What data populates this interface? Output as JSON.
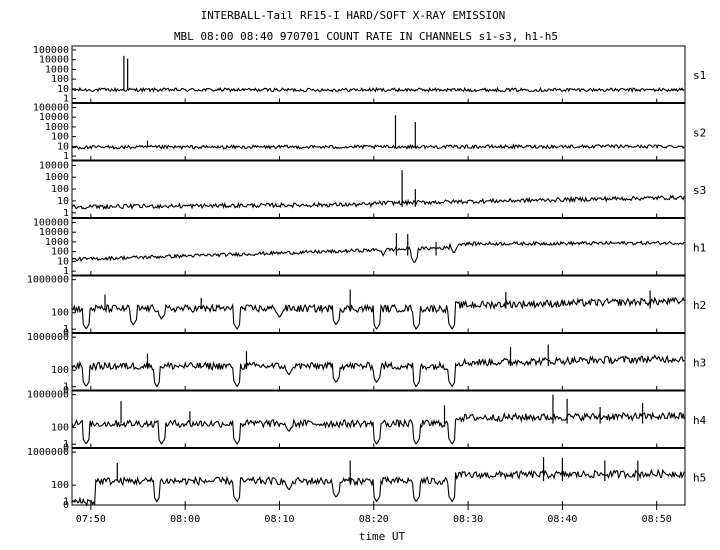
{
  "figure": {
    "title_line1": "INTERBALL-Tail RF15-I HARD/SOFT X-RAY EMISSION",
    "title_line2": "MBL 08:00 08:40 970701  COUNT RATE IN CHANNELS s1-s3, h1-h5"
  },
  "chart_data": {
    "type": "line",
    "title": "INTERBALL-Tail RF15-I HARD/SOFT X-RAY EMISSION",
    "subtitle": "MBL 08:00 08:40 970701  COUNT RATE IN CHANNELS s1-s3, h1-h5",
    "xlabel": "time UT",
    "x_range_minutes": [
      -12,
      53
    ],
    "x_ticks": [
      {
        "minute": -10,
        "label": "07:50"
      },
      {
        "minute": 0,
        "label": "08:00"
      },
      {
        "minute": 10,
        "label": "08:10"
      },
      {
        "minute": 20,
        "label": "08:20"
      },
      {
        "minute": 30,
        "label": "08:30"
      },
      {
        "minute": 40,
        "label": "08:40"
      },
      {
        "minute": 50,
        "label": "08:50"
      }
    ],
    "y_scale": "log",
    "grid": false,
    "panels": [
      {
        "name": "s1",
        "ymax_exp": 5,
        "ytick_labels": [
          "100000",
          "10000",
          "1000",
          "100",
          "10",
          "1"
        ],
        "baseline_exp": 0.9,
        "segments": [
          {
            "t0": -12,
            "t1": 53,
            "y0": 0.9,
            "y1": 0.9
          }
        ],
        "drops": [],
        "spikes": [
          {
            "t": -6.5,
            "exp": 4.4
          },
          {
            "t": -6.1,
            "exp": 4.1
          }
        ]
      },
      {
        "name": "s2",
        "ymax_exp": 5,
        "ytick_labels": [
          "100000",
          "10000",
          "1000",
          "100",
          "10",
          "1"
        ],
        "baseline_exp": 0.9,
        "segments": [
          {
            "t0": -12,
            "t1": 53,
            "y0": 0.9,
            "y1": 1.0
          }
        ],
        "drops": [],
        "spikes": [
          {
            "t": -4.0,
            "exp": 1.6
          },
          {
            "t": 22.3,
            "exp": 4.2
          },
          {
            "t": 24.4,
            "exp": 3.5
          }
        ]
      },
      {
        "name": "s3",
        "ymax_exp": 4,
        "ytick_labels": [
          "10000",
          "1000",
          "100",
          "10",
          "1"
        ],
        "baseline_exp": 0.5,
        "segments": [
          {
            "t0": -12,
            "t1": 20,
            "y0": 0.5,
            "y1": 0.7
          },
          {
            "t0": 20,
            "t1": 53,
            "y0": 0.8,
            "y1": 1.3
          }
        ],
        "drops": [],
        "spikes": [
          {
            "t": 23.0,
            "exp": 3.6
          },
          {
            "t": 24.4,
            "exp": 2.0
          }
        ]
      },
      {
        "name": "h1",
        "ymax_exp": 5,
        "ytick_labels": [
          "100000",
          "10000",
          "1000",
          "100",
          "10",
          "1"
        ],
        "baseline_exp": 1.6,
        "segments": [
          {
            "t0": -12,
            "t1": 28,
            "y0": 1.2,
            "y1": 2.4
          },
          {
            "t0": 28,
            "t1": 53,
            "y0": 2.8,
            "y1": 2.9
          }
        ],
        "drops": [
          {
            "t": 5,
            "exp": 1.8
          },
          {
            "t": 13,
            "exp": 1.8
          },
          {
            "t": 16,
            "exp": 1.8
          },
          {
            "t": 21,
            "exp": 1.6
          },
          {
            "t": 24.3,
            "exp": 0.8
          },
          {
            "t": 28.5,
            "exp": 1.8
          }
        ],
        "spikes": [
          {
            "t": 22.4,
            "exp": 3.9
          },
          {
            "t": 23.6,
            "exp": 3.8
          },
          {
            "t": 26.6,
            "exp": 3.0
          }
        ]
      },
      {
        "name": "h2",
        "ymax_exp": 6,
        "ytick_labels": [
          "1000000",
          "100",
          "1",
          "0"
        ],
        "baseline_exp": 2.5,
        "segments": [
          {
            "t0": -12,
            "t1": 28.5,
            "y0": 2.5,
            "y1": 2.5
          },
          {
            "t0": 28.5,
            "t1": 53,
            "y0": 2.9,
            "y1": 3.4
          }
        ],
        "drops": [
          {
            "t": -10.5,
            "exp": 0.0
          },
          {
            "t": -5.5,
            "exp": 0.5
          },
          {
            "t": -2.5,
            "exp": 1.2
          },
          {
            "t": 5.5,
            "exp": 0.0
          },
          {
            "t": 10.0,
            "exp": 1.4
          },
          {
            "t": 16.0,
            "exp": 0.5
          },
          {
            "t": 20.3,
            "exp": 0.0
          },
          {
            "t": 24.5,
            "exp": 0.0
          },
          {
            "t": 28.3,
            "exp": 0.0
          }
        ],
        "spikes": [
          {
            "t": -8.5,
            "exp": 4.2
          },
          {
            "t": 1.7,
            "exp": 3.8
          },
          {
            "t": 17.5,
            "exp": 4.8
          },
          {
            "t": 34.0,
            "exp": 4.5
          },
          {
            "t": 49.3,
            "exp": 4.7
          }
        ]
      },
      {
        "name": "h3",
        "ymax_exp": 6,
        "ytick_labels": [
          "1000000",
          "100",
          "1",
          "0"
        ],
        "baseline_exp": 2.5,
        "segments": [
          {
            "t0": -12,
            "t1": 28.5,
            "y0": 2.5,
            "y1": 2.5
          },
          {
            "t0": 28.5,
            "t1": 53,
            "y0": 2.9,
            "y1": 3.4
          }
        ],
        "drops": [
          {
            "t": -10.5,
            "exp": 0.0
          },
          {
            "t": -3.0,
            "exp": 0.0
          },
          {
            "t": 5.5,
            "exp": 0.0
          },
          {
            "t": 11.0,
            "exp": 1.4
          },
          {
            "t": 16.0,
            "exp": 0.5
          },
          {
            "t": 20.3,
            "exp": 0.5
          },
          {
            "t": 24.5,
            "exp": 0.0
          },
          {
            "t": 28.3,
            "exp": 0.0
          }
        ],
        "spikes": [
          {
            "t": -4.0,
            "exp": 4.0
          },
          {
            "t": 6.5,
            "exp": 4.3
          },
          {
            "t": 34.5,
            "exp": 4.8
          },
          {
            "t": 38.5,
            "exp": 5.1
          }
        ]
      },
      {
        "name": "h4",
        "ymax_exp": 6,
        "ytick_labels": [
          "1000000",
          "100",
          "1",
          "0"
        ],
        "baseline_exp": 2.5,
        "segments": [
          {
            "t0": -12,
            "t1": 28.5,
            "y0": 2.5,
            "y1": 2.5
          },
          {
            "t0": 28.5,
            "t1": 53,
            "y0": 3.2,
            "y1": 3.4
          }
        ],
        "drops": [
          {
            "t": -10.5,
            "exp": 0.0
          },
          {
            "t": -2.5,
            "exp": 0.0
          },
          {
            "t": 5.5,
            "exp": 0.0
          },
          {
            "t": 11.0,
            "exp": 1.5
          },
          {
            "t": 20.3,
            "exp": 0.0
          },
          {
            "t": 24.5,
            "exp": 0.0
          },
          {
            "t": 28.3,
            "exp": 0.0
          }
        ],
        "spikes": [
          {
            "t": -6.8,
            "exp": 5.2
          },
          {
            "t": 0.5,
            "exp": 4.0
          },
          {
            "t": 27.5,
            "exp": 4.7
          },
          {
            "t": 39.0,
            "exp": 6.0
          },
          {
            "t": 40.5,
            "exp": 5.5
          },
          {
            "t": 44.0,
            "exp": 4.5
          },
          {
            "t": 48.5,
            "exp": 5.0
          }
        ]
      },
      {
        "name": "h5",
        "ymax_exp": 6,
        "ytick_labels": [
          "1000000",
          "100",
          "1",
          "0"
        ],
        "baseline_exp": 2.5,
        "segments": [
          {
            "t0": -12,
            "t1": -9.5,
            "y0": 0.0,
            "y1": 0.0
          },
          {
            "t0": -9.5,
            "t1": 28.5,
            "y0": 2.5,
            "y1": 2.5
          },
          {
            "t0": 28.5,
            "t1": 53,
            "y0": 3.2,
            "y1": 3.4
          }
        ],
        "drops": [
          {
            "t": -3.0,
            "exp": 0.0
          },
          {
            "t": 5.5,
            "exp": 0.0
          },
          {
            "t": 11.0,
            "exp": 1.4
          },
          {
            "t": 16.0,
            "exp": 0.5
          },
          {
            "t": 20.3,
            "exp": 0.0
          },
          {
            "t": 24.5,
            "exp": 0.0
          },
          {
            "t": 28.3,
            "exp": 0.0
          }
        ],
        "spikes": [
          {
            "t": -7.2,
            "exp": 4.7
          },
          {
            "t": 17.5,
            "exp": 5.0
          },
          {
            "t": 38.0,
            "exp": 5.4
          },
          {
            "t": 40.0,
            "exp": 5.3
          },
          {
            "t": 44.5,
            "exp": 5.0
          },
          {
            "t": 48.0,
            "exp": 5.0
          }
        ]
      }
    ]
  }
}
